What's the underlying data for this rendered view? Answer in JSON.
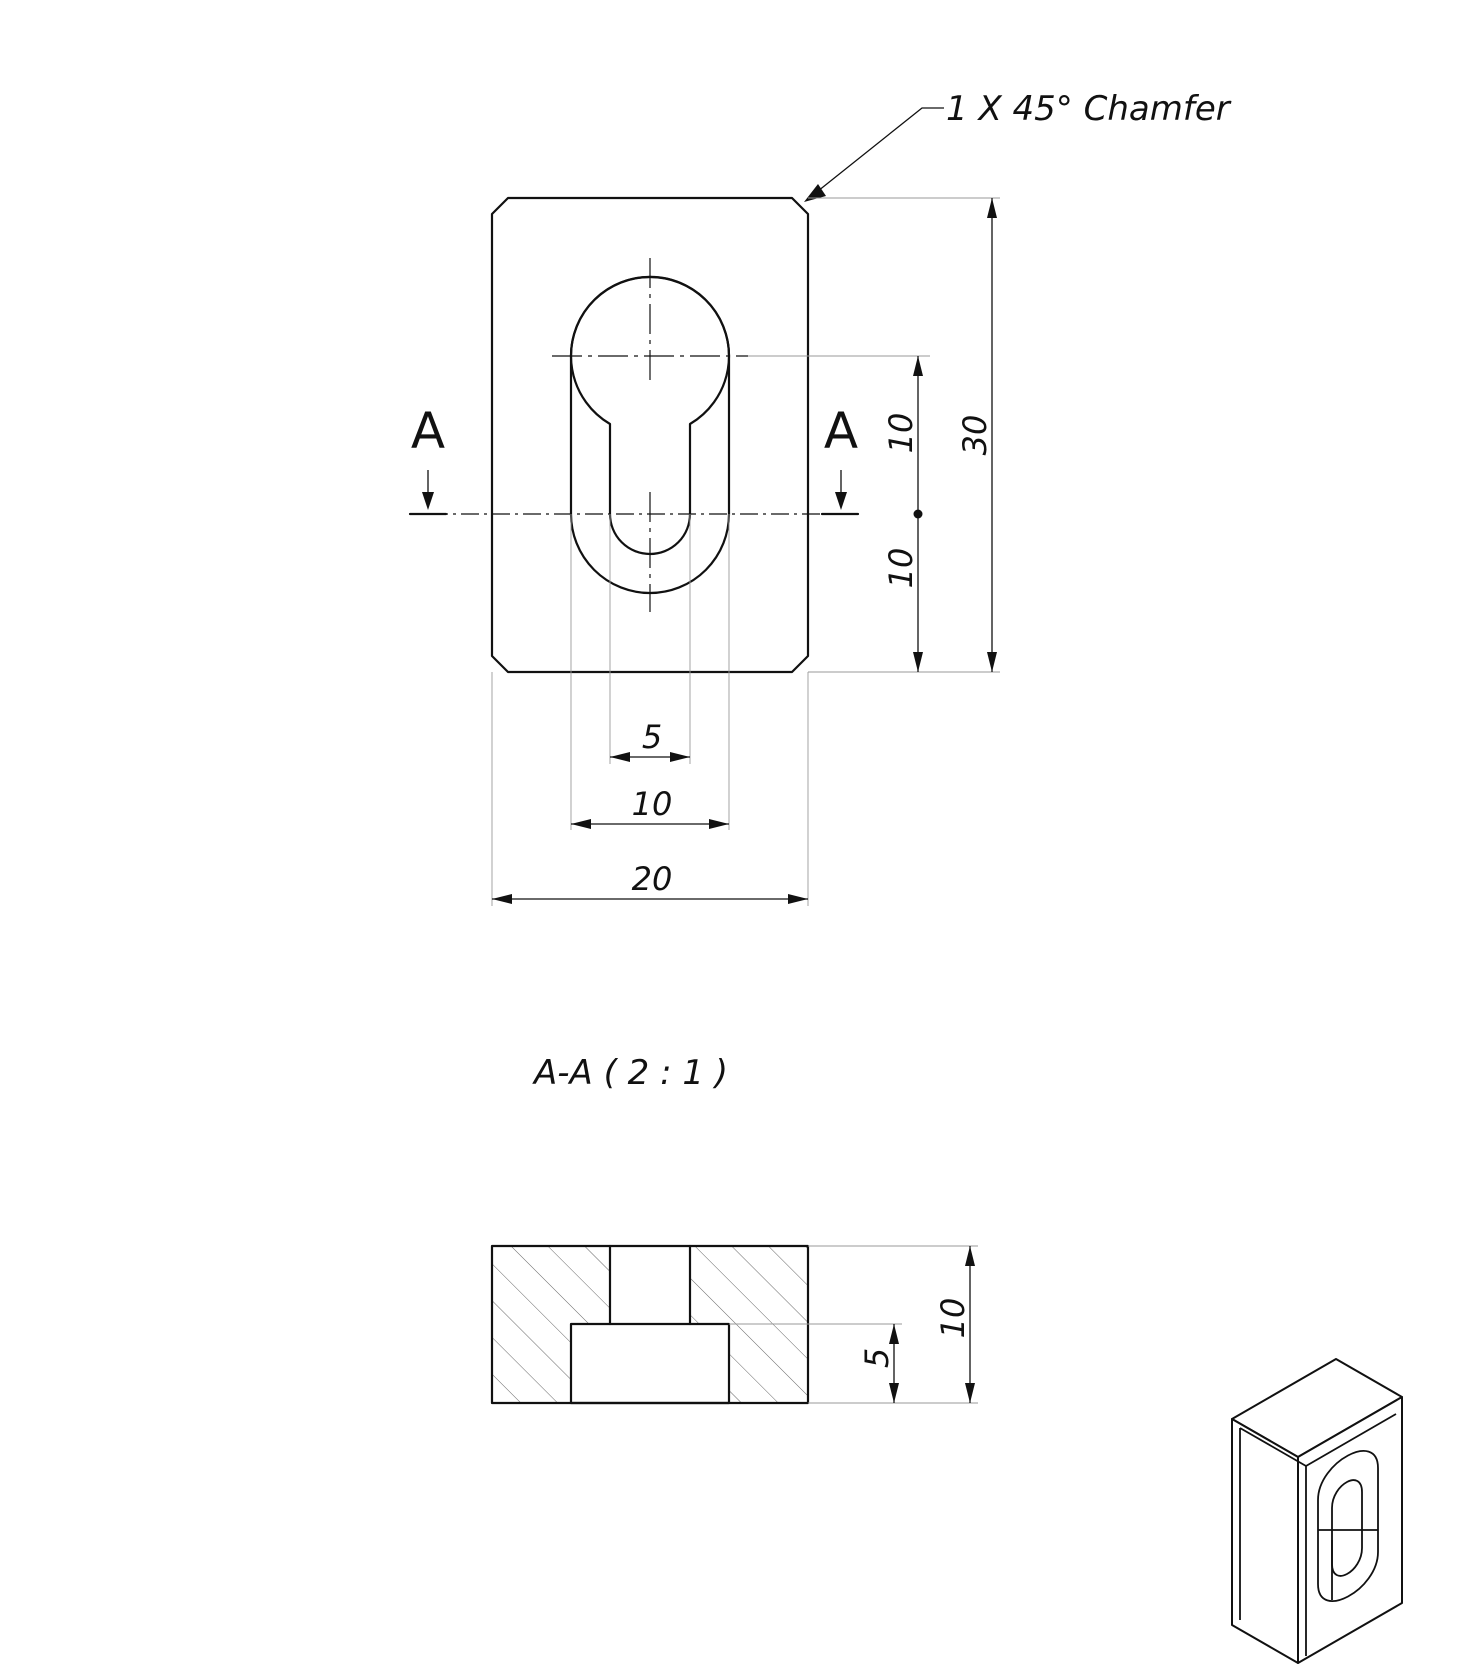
{
  "annotations": {
    "chamfer_note": "1 X 45° Chamfer",
    "section_title": "A-A ( 2 : 1 )",
    "section_left_label": "A",
    "section_right_label": "A"
  },
  "dimensions": {
    "overall_height": "30",
    "upper_offset": "10",
    "lower_offset": "10",
    "inner_slot_width": "5",
    "outer_slot_width": "10",
    "overall_width": "20",
    "section_total_depth": "10",
    "section_step_depth": "5"
  }
}
